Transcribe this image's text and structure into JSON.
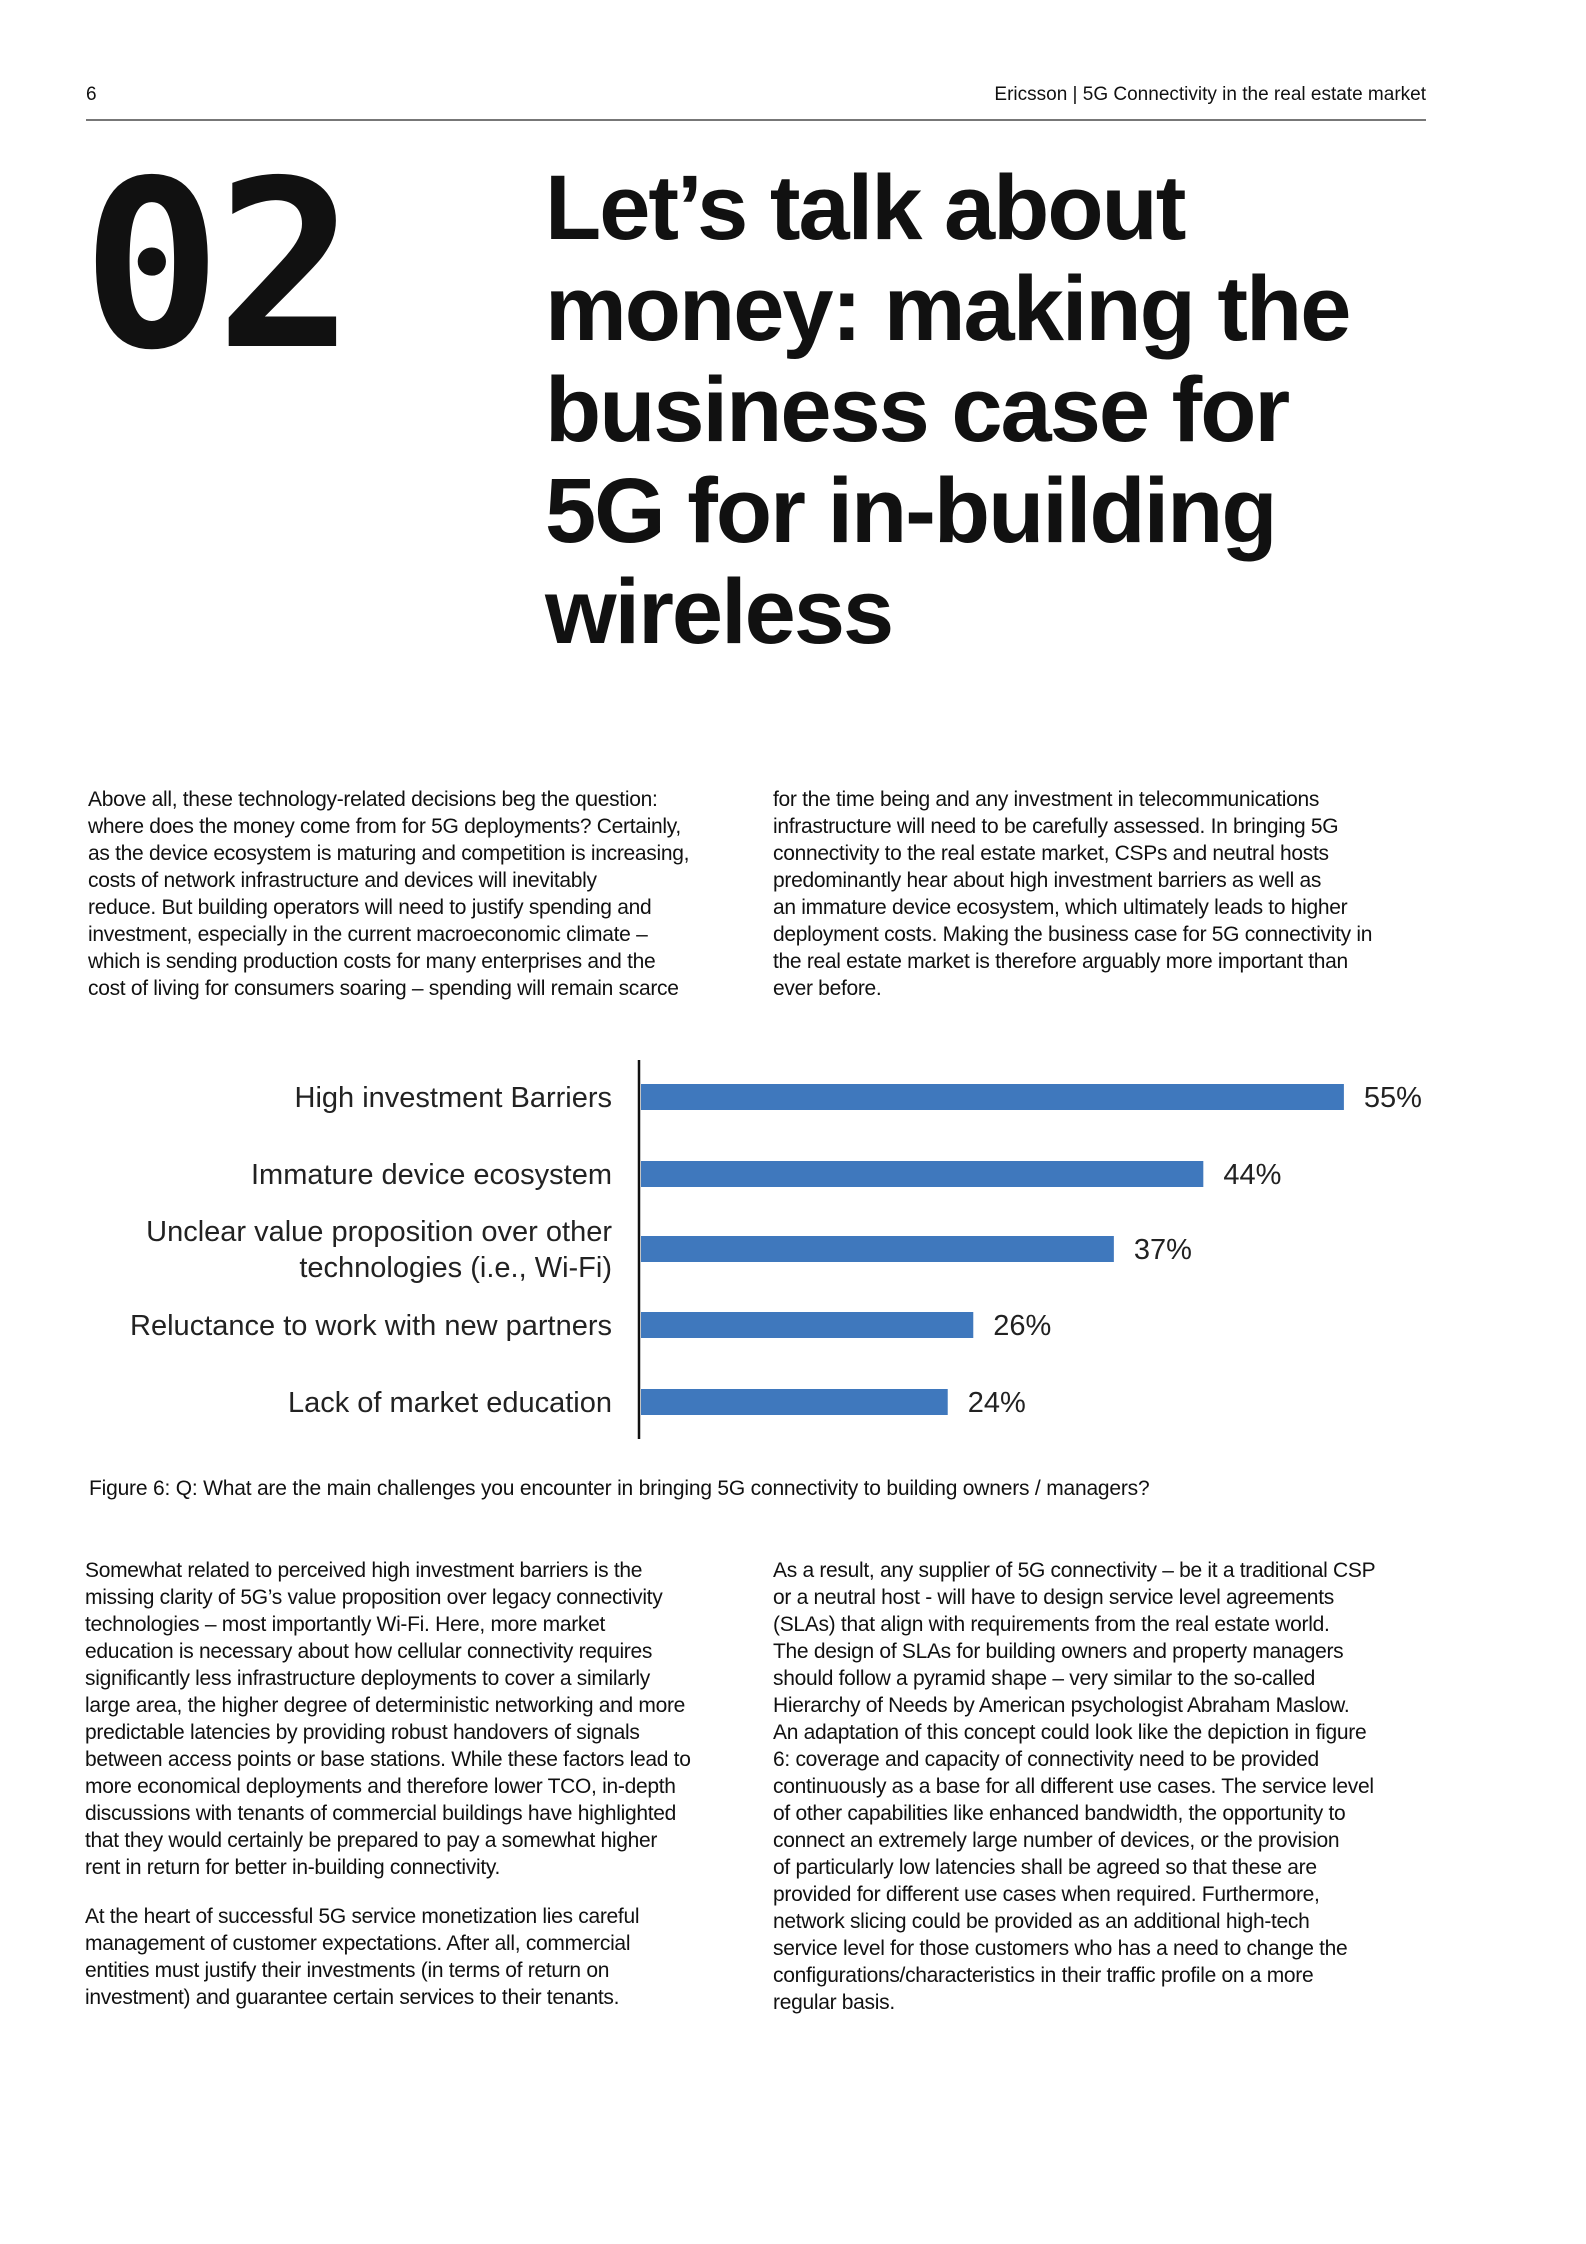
{
  "header": {
    "page_number": "6",
    "running_head": "Ericsson  |  5G Connectivity in the real estate market"
  },
  "chapter": {
    "number": "02",
    "title_lines": [
      "Let’s talk about",
      "money: making the",
      "business case for",
      "5G for in-building",
      "wireless"
    ]
  },
  "intro": {
    "left": [
      "Above all, these technology-related decisions beg the question:",
      "where does the money come from for 5G deployments? Certainly,",
      "as the device ecosystem is maturing and competition is increasing,",
      "costs of network infrastructure and devices will inevitably",
      "reduce. But building operators will need to justify spending and",
      "investment, especially in the current macroeconomic climate –",
      "which is sending production costs for many enterprises and the",
      "cost of living for consumers soaring – spending will remain scarce"
    ],
    "right": [
      "for the time being and any investment in telecommunications",
      "infrastructure will need to be carefully assessed. In bringing 5G",
      "connectivity to the real estate market, CSPs and neutral hosts",
      "predominantly hear about high investment barriers as well as",
      "an immature device ecosystem, which ultimately leads to higher",
      "deployment costs. Making the business case for 5G connectivity in",
      "the real estate market is therefore arguably more important than",
      "ever before."
    ]
  },
  "chart_data": {
    "type": "bar",
    "orientation": "horizontal",
    "categories": [
      [
        "High investment Barriers"
      ],
      [
        "Immature device ecosystem"
      ],
      [
        "Unclear value proposition over other",
        "technologies (i.e., Wi-Fi)"
      ],
      [
        "Reluctance to work with new partners"
      ],
      [
        "Lack of market education"
      ]
    ],
    "values": [
      55,
      44,
      37,
      26,
      24
    ],
    "data_labels": [
      "55%",
      "44%",
      "37%",
      "26%",
      "24%"
    ],
    "bar_color": "#3f78bd",
    "grid": false,
    "caption": "Figure 6: Q: What are the main challenges you encounter in bringing 5G connectivity to building owners / managers?"
  },
  "body": {
    "left": [
      [
        "Somewhat related to perceived high investment barriers is the",
        "missing clarity of 5G’s value proposition over legacy connectivity",
        "technologies – most importantly Wi-Fi. Here, more market",
        "education is necessary about how cellular connectivity requires",
        "significantly less infrastructure deployments to cover a similarly",
        "large area, the higher degree of deterministic networking and more",
        "predictable latencies by providing robust handovers of signals",
        "between access points or base stations. While these factors lead to",
        "more economical deployments and therefore lower TCO, in-depth",
        "discussions with tenants of commercial buildings have highlighted",
        "that they would certainly be prepared to pay a somewhat higher",
        "rent in return for better in-building connectivity."
      ],
      [
        "At the heart of successful 5G service monetization lies careful",
        "management of customer expectations. After all, commercial",
        "entities must justify their investments (in terms of return on",
        "investment) and guarantee certain services to their tenants."
      ]
    ],
    "right": [
      [
        "As a result, any supplier of 5G connectivity – be it a traditional CSP",
        "or a neutral host - will have to design service level agreements",
        "(SLAs) that align with requirements from the real estate world.",
        "The design of SLAs for building owners and property managers",
        "should follow a pyramid shape – very similar to the so-called",
        "Hierarchy of Needs by American psychologist Abraham Maslow.",
        "An adaptation of this concept could look like the depiction in figure",
        "6: coverage and capacity of connectivity need to be provided",
        "continuously as a base for all different use cases. The service level",
        "of other capabilities like enhanced bandwidth, the opportunity to",
        "connect an extremely large number of devices, or the provision",
        "of particularly low latencies shall be agreed so that these are",
        "provided for different use cases when required. Furthermore,",
        "network slicing could be provided as an additional high-tech",
        "service level for those customers who has a need to change the",
        "configurations/characteristics in their traffic profile on a more",
        "regular basis."
      ]
    ]
  }
}
